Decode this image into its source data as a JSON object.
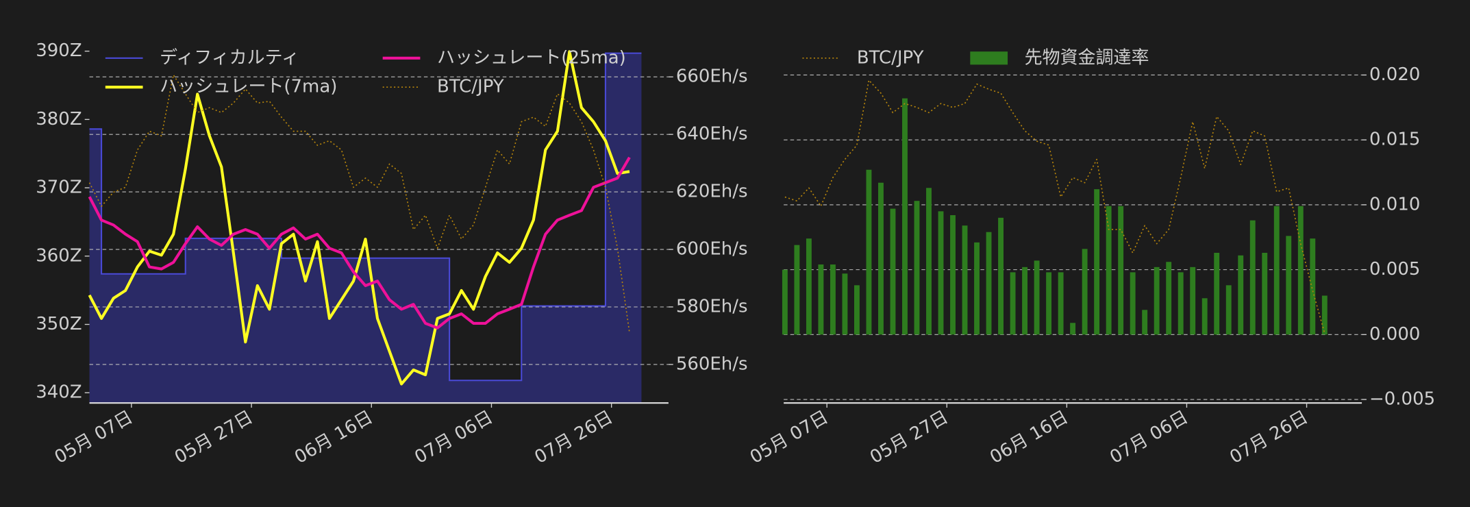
{
  "chart_data": [
    {
      "type": "line",
      "x": [
        -7,
        -5,
        -3,
        -1,
        1,
        3,
        5,
        7,
        9,
        11,
        13,
        15,
        17,
        19,
        21,
        23,
        25,
        27,
        29,
        31,
        33,
        35,
        37,
        39,
        41,
        43,
        45,
        47,
        49,
        51,
        53,
        55,
        57,
        59,
        61,
        63,
        65,
        67,
        69,
        71,
        73,
        75,
        77,
        79,
        81,
        83
      ],
      "xlim": [
        -7,
        89.5
      ],
      "xticks": [
        {
          "value": 0,
          "label": "05月 07日"
        },
        {
          "value": 20,
          "label": "05月 27日"
        },
        {
          "value": 40,
          "label": "06月 16日"
        },
        {
          "value": 60,
          "label": "07月 06日"
        },
        {
          "value": 80,
          "label": "07月 26日"
        }
      ],
      "ylim": [
        338.5,
        392
      ],
      "yticks": [
        {
          "value": 340,
          "label": "340Z"
        },
        {
          "value": 350,
          "label": "350Z"
        },
        {
          "value": 360,
          "label": "360Z"
        },
        {
          "value": 370,
          "label": "370Z"
        },
        {
          "value": 380,
          "label": "380Z"
        },
        {
          "value": 390,
          "label": "390Z"
        }
      ],
      "y2lim": [
        546.6,
        673.7
      ],
      "y2ticks": [
        {
          "value": 560,
          "label": "560Eh/s"
        },
        {
          "value": 580,
          "label": "580Eh/s"
        },
        {
          "value": 600,
          "label": "600Eh/s"
        },
        {
          "value": 620,
          "label": "620Eh/s"
        },
        {
          "value": 640,
          "label": "640Eh/s"
        },
        {
          "value": 660,
          "label": "660Eh/s"
        }
      ],
      "y_axis_side": "left",
      "grid": "y2",
      "legend": "upper left",
      "legend_columns": 2,
      "series": [
        {
          "name": "ディフィカルティ",
          "color": "#4a4ad8",
          "fill": "#2a2a66",
          "style": "step",
          "axis": "y",
          "values": [
            378.6,
            357.4,
            357.4,
            357.4,
            357.4,
            357.4,
            357.4,
            357.4,
            362.6,
            362.6,
            362.6,
            362.6,
            362.6,
            362.6,
            362.6,
            362.6,
            359.7,
            359.7,
            359.7,
            359.7,
            359.7,
            359.7,
            359.7,
            359.7,
            359.7,
            359.7,
            359.7,
            359.7,
            359.7,
            359.7,
            341.8,
            341.8,
            341.8,
            341.8,
            341.8,
            341.8,
            352.7,
            352.7,
            352.7,
            352.7,
            352.7,
            352.7,
            352.7,
            389.7,
            389.7,
            389.7
          ]
        },
        {
          "name": "ハッシュレート(7ma)",
          "color": "#ffff22",
          "style": "line",
          "axis": "y2",
          "values": [
            584.1,
            576,
            583,
            585.7,
            593.9,
            599.4,
            598,
            605.3,
            628,
            654,
            639.5,
            628.7,
            598.8,
            567.8,
            587.4,
            579.2,
            602,
            605.3,
            589,
            602.7,
            576,
            582.5,
            589,
            603.6,
            576,
            564.6,
            553.2,
            558.1,
            556.4,
            576,
            577.6,
            585.7,
            579.2,
            590.6,
            598.8,
            595.5,
            600.4,
            610.2,
            634.6,
            641.1,
            668.8,
            649.3,
            644.4,
            637.8,
            626.4,
            627.1
          ]
        },
        {
          "name": "ハッシュレート(25ma)",
          "color": "#ee1199",
          "style": "line",
          "axis": "y2",
          "values": [
            618.3,
            610.2,
            608.5,
            605.3,
            602.7,
            593.9,
            593.2,
            595.5,
            602,
            607.9,
            603.6,
            601.4,
            605.3,
            606.9,
            605.3,
            600.4,
            605.3,
            607.5,
            603.6,
            605.3,
            600.4,
            598.8,
            592.2,
            587.4,
            589,
            582.5,
            579.2,
            580.9,
            574.3,
            572.7,
            576,
            577.6,
            574.3,
            574.3,
            577.6,
            579.2,
            580.9,
            593.9,
            605.3,
            610.2,
            611.9,
            613.5,
            621.6,
            623.2,
            624.8,
            632
          ]
        },
        {
          "name": "BTC/JPY",
          "color": "#b8860b",
          "style": "dotted",
          "axis": "y2",
          "values": [
            623.2,
            615,
            619.9,
            621.6,
            634.6,
            641.1,
            639.5,
            660.7,
            654.1,
            647.6,
            649.3,
            647.6,
            650.9,
            655.8,
            650.9,
            651.5,
            646,
            641.1,
            641.1,
            636.2,
            637.8,
            634.6,
            621.6,
            624.8,
            621.6,
            629.7,
            626.4,
            606.9,
            611.9,
            600.4,
            611.9,
            603.6,
            608.5,
            621.6,
            634.6,
            629.7,
            644.4,
            646,
            642.8,
            654.1,
            650.9,
            644.4,
            634.6,
            621.6,
            600.4,
            571.1
          ]
        }
      ]
    },
    {
      "type": "bar",
      "x": [
        -7,
        -5,
        -3,
        -1,
        1,
        3,
        5,
        7,
        9,
        11,
        13,
        15,
        17,
        19,
        21,
        23,
        25,
        27,
        29,
        31,
        33,
        35,
        37,
        39,
        41,
        43,
        45,
        47,
        49,
        51,
        53,
        55,
        57,
        59,
        61,
        63,
        65,
        67,
        69,
        71,
        73,
        75,
        77,
        79,
        81,
        83
      ],
      "xlim": [
        -7.2,
        89.2
      ],
      "xticks": [
        {
          "value": 0,
          "label": "05月 07日"
        },
        {
          "value": 20,
          "label": "05月 27日"
        },
        {
          "value": 40,
          "label": "06月 16日"
        },
        {
          "value": 60,
          "label": "07月 06日"
        },
        {
          "value": 80,
          "label": "07月 26日"
        }
      ],
      "ylim": [
        -0.00527,
        0.02289
      ],
      "yticks": [
        {
          "value": -0.005,
          "label": "−0.005"
        },
        {
          "value": 0,
          "label": "0.000"
        },
        {
          "value": 0.005,
          "label": "0.005"
        },
        {
          "value": 0.01,
          "label": "0.010"
        },
        {
          "value": 0.015,
          "label": "0.015"
        },
        {
          "value": 0.02,
          "label": "0.020"
        }
      ],
      "y_axis_side": "right",
      "grid": "y",
      "legend": "upper left",
      "legend_columns": 2,
      "series": [
        {
          "name": "BTC/JPY",
          "color": "#b8860b",
          "style": "dotted",
          "axis": "y",
          "values": [
            0.0106,
            0.0103,
            0.0113,
            0.0099,
            0.0121,
            0.0135,
            0.0146,
            0.0196,
            0.0186,
            0.0171,
            0.0178,
            0.0175,
            0.0171,
            0.0178,
            0.0175,
            0.0178,
            0.0193,
            0.0189,
            0.0186,
            0.0171,
            0.0157,
            0.0149,
            0.0146,
            0.0106,
            0.0121,
            0.0117,
            0.0135,
            0.0081,
            0.0081,
            0.0063,
            0.0084,
            0.007,
            0.0081,
            0.0121,
            0.0164,
            0.0128,
            0.0168,
            0.0157,
            0.0131,
            0.0157,
            0.0153,
            0.011,
            0.0113,
            0.007,
            0.0034,
            0.0001
          ]
        },
        {
          "name": "先物資金調達率",
          "color": "#2e7d1f",
          "style": "bar",
          "axis": "y",
          "values": [
            0.005,
            0.0069,
            0.0074,
            0.0054,
            0.0054,
            0.0047,
            0.0038,
            0.0127,
            0.0117,
            0.0097,
            0.0182,
            0.0103,
            0.0113,
            0.0095,
            0.0092,
            0.0084,
            0.0071,
            0.0079,
            0.009,
            0.0048,
            0.0052,
            0.0057,
            0.0048,
            0.0048,
            0.0009,
            0.0066,
            0.0112,
            0.0099,
            0.0099,
            0.0048,
            0.0019,
            0.0052,
            0.0056,
            0.0048,
            0.0052,
            0.0028,
            0.0063,
            0.0038,
            0.0061,
            0.0088,
            0.0063,
            0.0099,
            0.0076,
            0.0099,
            0.0074,
            0.003
          ]
        }
      ]
    }
  ]
}
